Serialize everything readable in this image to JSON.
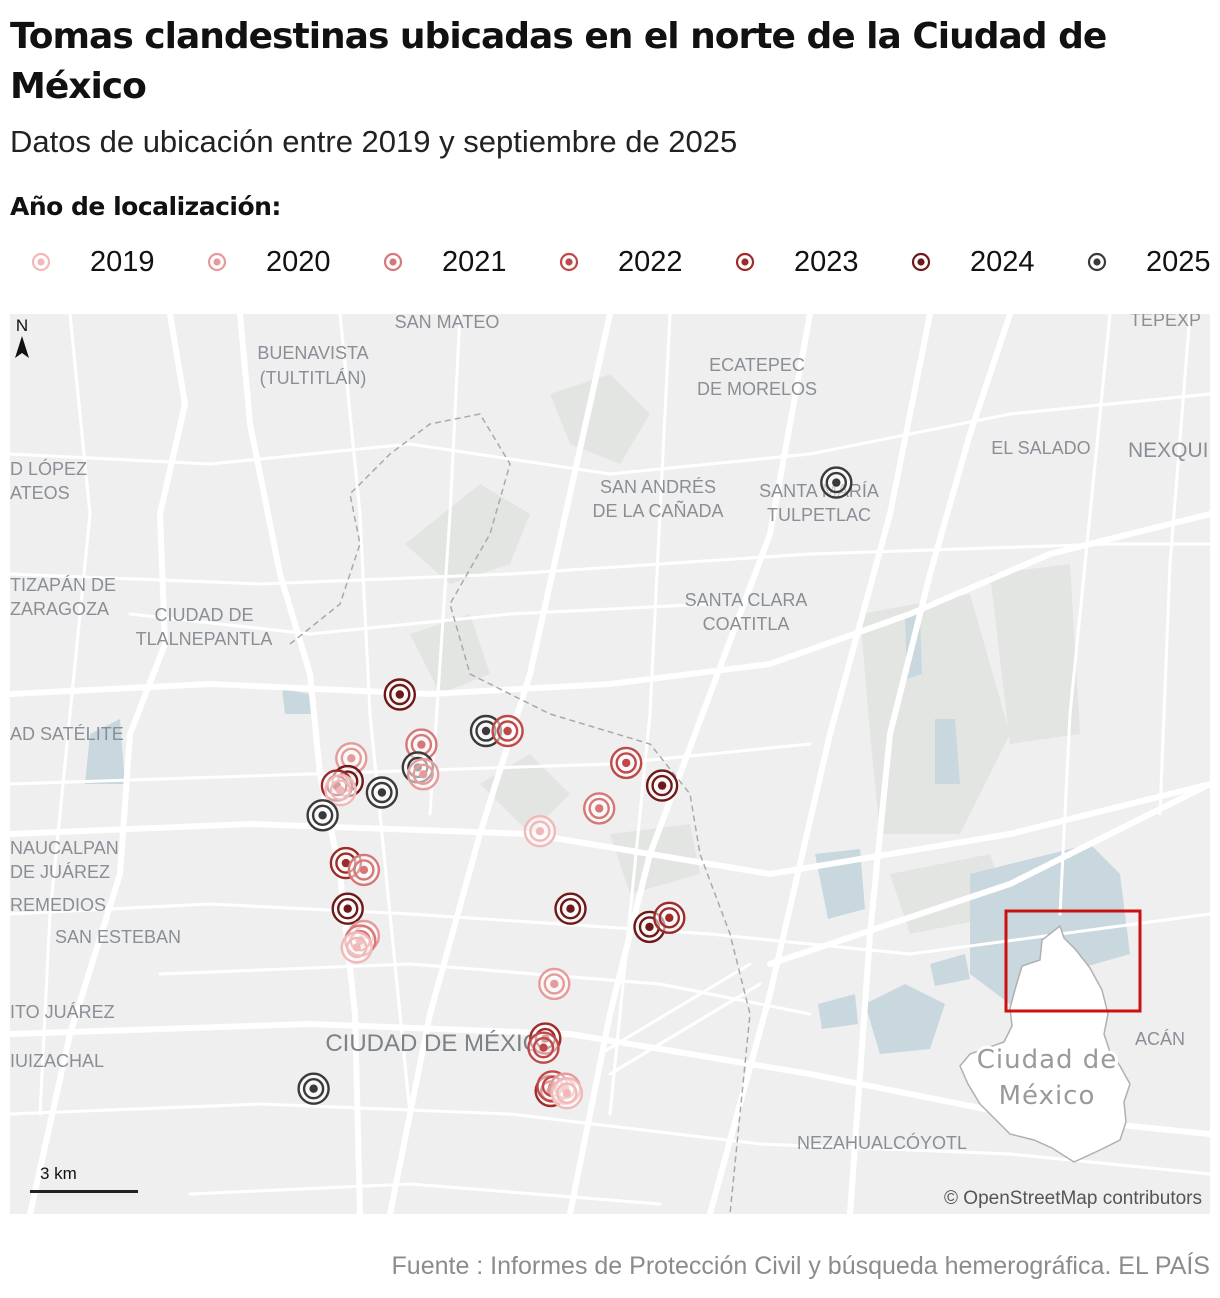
{
  "title": "Tomas clandestinas ubicadas en el norte de la Ciudad de México",
  "subtitle": "Datos de ubicación entre 2019 y septiembre de 2025",
  "legend": {
    "title": "Año de localización:",
    "items": [
      {
        "label": "2019",
        "color": "#f2b8b8"
      },
      {
        "label": "2020",
        "color": "#e79a9a"
      },
      {
        "label": "2021",
        "color": "#d77878"
      },
      {
        "label": "2022",
        "color": "#c04848"
      },
      {
        "label": "2023",
        "color": "#9e2a2a"
      },
      {
        "label": "2024",
        "color": "#6f1818"
      },
      {
        "label": "2025",
        "color": "#3a3a3a"
      }
    ]
  },
  "map": {
    "places": [
      "SAN MATEO",
      "BUENAVISTA",
      "(TULTITLÁN)",
      "ECATEPEC",
      "DE MORELOS",
      "TEPEXP",
      "EL SALADO",
      "NEXQUI",
      "D LÓPEZ",
      "ATEOS",
      "SAN ANDRÉS",
      "DE LA CAÑADA",
      "SANTA MARÍA",
      "TULPETLAC",
      "TIZAPÁN DE",
      "ZARAGOZA",
      "CIUDAD DE",
      "TLALNEPANTLA",
      "SANTA CLARA",
      "COATITLA",
      "AD SATÉLITE",
      "NAUCALPAN",
      "DE JUÁREZ",
      "REMEDIOS",
      "SAN ESTEBAN",
      "ITO JUÁREZ",
      "IUIZACHAL",
      "CIUDAD DE MÉXICO",
      "NEZAHUALCÓYOTL",
      "ACÁN"
    ],
    "markers": [
      {
        "year": "2025",
        "lon": -98.992,
        "lat": 19.641
      },
      {
        "year": "2024",
        "lon": -99.235,
        "lat": 19.548
      },
      {
        "year": "2025",
        "lon": -99.187,
        "lat": 19.532
      },
      {
        "year": "2022",
        "lon": -99.175,
        "lat": 19.532
      },
      {
        "year": "2021",
        "lon": -99.223,
        "lat": 19.526
      },
      {
        "year": "2020",
        "lon": -99.262,
        "lat": 19.52
      },
      {
        "year": "2025",
        "lon": -99.225,
        "lat": 19.516
      },
      {
        "year": "2020",
        "lon": -99.222,
        "lat": 19.513
      },
      {
        "year": "2024",
        "lon": -99.264,
        "lat": 19.51
      },
      {
        "year": "2023",
        "lon": -99.27,
        "lat": 19.508
      },
      {
        "year": "2019",
        "lon": -99.268,
        "lat": 19.506
      },
      {
        "year": "2025",
        "lon": -99.245,
        "lat": 19.505
      },
      {
        "year": "2025",
        "lon": -99.278,
        "lat": 19.495
      },
      {
        "year": "2022",
        "lon": -99.109,
        "lat": 19.518
      },
      {
        "year": "2024",
        "lon": -99.089,
        "lat": 19.508
      },
      {
        "year": "2021",
        "lon": -99.124,
        "lat": 19.498
      },
      {
        "year": "2019",
        "lon": -99.157,
        "lat": 19.488
      },
      {
        "year": "2023",
        "lon": -99.265,
        "lat": 19.474
      },
      {
        "year": "2021",
        "lon": -99.255,
        "lat": 19.471
      },
      {
        "year": "2024",
        "lon": -99.264,
        "lat": 19.454
      },
      {
        "year": "2024",
        "lon": -99.14,
        "lat": 19.454
      },
      {
        "year": "2024",
        "lon": -99.096,
        "lat": 19.446
      },
      {
        "year": "2023",
        "lon": -99.085,
        "lat": 19.45
      },
      {
        "year": "2020",
        "lon": -99.255,
        "lat": 19.442
      },
      {
        "year": "2021",
        "lon": -99.257,
        "lat": 19.44
      },
      {
        "year": "2019",
        "lon": -99.259,
        "lat": 19.437
      },
      {
        "year": "2020",
        "lon": -99.149,
        "lat": 19.421
      },
      {
        "year": "2023",
        "lon": -99.154,
        "lat": 19.397
      },
      {
        "year": "2022",
        "lon": -99.155,
        "lat": 19.393
      },
      {
        "year": "2023",
        "lon": -99.151,
        "lat": 19.374
      },
      {
        "year": "2022",
        "lon": -99.15,
        "lat": 19.376
      },
      {
        "year": "2020",
        "lon": -99.143,
        "lat": 19.375
      },
      {
        "year": "2019",
        "lon": -99.142,
        "lat": 19.373
      },
      {
        "year": "2025",
        "lon": -99.283,
        "lat": 19.375
      }
    ],
    "scale_label": "3 km",
    "north_label": "N",
    "inset_label_line1": "Ciudad de",
    "inset_label_line2": "México",
    "attribution": "© OpenStreetMap contributors"
  },
  "source": "Fuente : Informes de Protección Civil y búsqueda hemerográfica. EL PAÍS"
}
